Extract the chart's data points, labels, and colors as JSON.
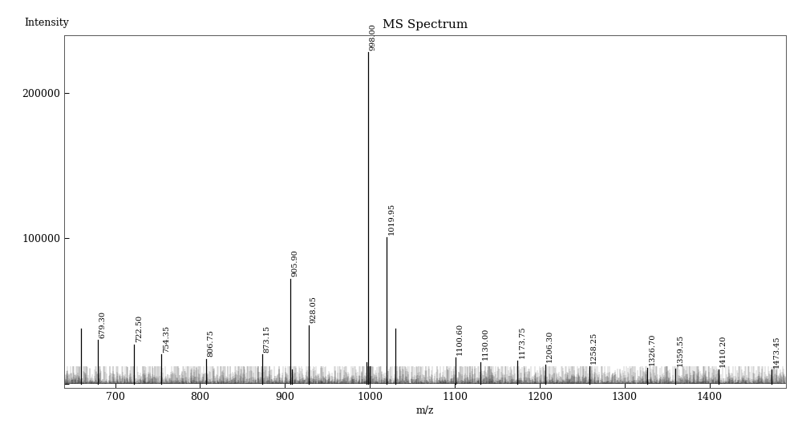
{
  "title": "MS Spectrum",
  "xlabel": "m/z",
  "ylabel": "Intensity",
  "xlim": [
    640,
    1490
  ],
  "ylim": [
    -3000,
    240000
  ],
  "background_color": "#ffffff",
  "spine_color": "#000000",
  "peaks": [
    {
      "mz": 998.0,
      "intensity": 228000,
      "label": "998.00",
      "annotate": true
    },
    {
      "mz": 1019.95,
      "intensity": 101000,
      "label": "1019.95",
      "annotate": true
    },
    {
      "mz": 905.9,
      "intensity": 72000,
      "label": "905.90",
      "annotate": true
    },
    {
      "mz": 928.05,
      "intensity": 40000,
      "label": "928.05",
      "annotate": true
    },
    {
      "mz": 679.3,
      "intensity": 30000,
      "label": "679.30",
      "annotate": true
    },
    {
      "mz": 722.5,
      "intensity": 27000,
      "label": "722.50",
      "annotate": true
    },
    {
      "mz": 754.35,
      "intensity": 20000,
      "label": "754.35",
      "annotate": true
    },
    {
      "mz": 806.75,
      "intensity": 17000,
      "label": "806.75",
      "annotate": true
    },
    {
      "mz": 873.15,
      "intensity": 20000,
      "label": "873.15",
      "annotate": true
    },
    {
      "mz": 1100.6,
      "intensity": 18000,
      "label": "1100.60",
      "annotate": true
    },
    {
      "mz": 1130.0,
      "intensity": 15000,
      "label": "1130.00",
      "annotate": true
    },
    {
      "mz": 1173.75,
      "intensity": 16000,
      "label": "1173.75",
      "annotate": true
    },
    {
      "mz": 1206.3,
      "intensity": 13000,
      "label": "1206.30",
      "annotate": true
    },
    {
      "mz": 1258.25,
      "intensity": 12000,
      "label": "1258.25",
      "annotate": true
    },
    {
      "mz": 1326.7,
      "intensity": 11000,
      "label": "1326.70",
      "annotate": true
    },
    {
      "mz": 1359.55,
      "intensity": 10500,
      "label": "1359.55",
      "annotate": true
    },
    {
      "mz": 1410.2,
      "intensity": 10000,
      "label": "1410.20",
      "annotate": true
    },
    {
      "mz": 1473.45,
      "intensity": 9500,
      "label": "1473.45",
      "annotate": true
    },
    {
      "mz": 1030.0,
      "intensity": 38000,
      "label": "",
      "annotate": false
    },
    {
      "mz": 660.0,
      "intensity": 38000,
      "label": "",
      "annotate": false
    },
    {
      "mz": 996.0,
      "intensity": 15000,
      "label": "",
      "annotate": false
    },
    {
      "mz": 1000.0,
      "intensity": 12000,
      "label": "",
      "annotate": false
    },
    {
      "mz": 908.0,
      "intensity": 10000,
      "label": "",
      "annotate": false
    }
  ],
  "noise_seed": 12345,
  "title_fontsize": 11,
  "axis_label_fontsize": 9,
  "tick_fontsize": 9,
  "annotation_fontsize": 7
}
